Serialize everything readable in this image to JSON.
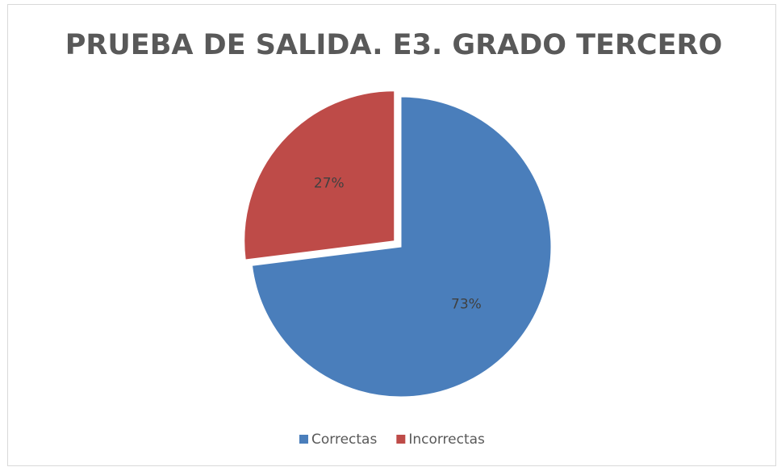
{
  "chart_data": {
    "type": "pie",
    "title": "PRUEBA DE SALIDA. E3. GRADO TERCERO",
    "categories": [
      "Correctas",
      "Incorrectas"
    ],
    "values": [
      73,
      27
    ],
    "value_labels": [
      "73%",
      "27%"
    ],
    "colors": [
      "#4a7ebb",
      "#be4b48"
    ],
    "legend": "bottom"
  }
}
